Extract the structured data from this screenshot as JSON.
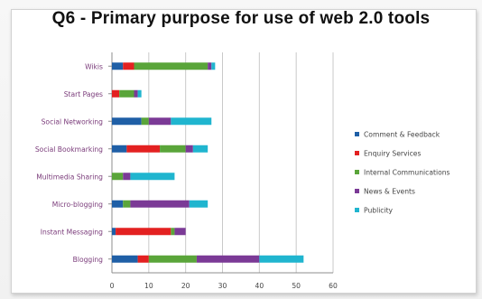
{
  "chart_data": {
    "type": "bar",
    "orientation": "horizontal",
    "stacked": true,
    "title": "Q6 - Primary purpose for use of web 2.0 tools",
    "xlabel": "",
    "ylabel": "",
    "xlim": [
      0,
      60
    ],
    "xticks": [
      0,
      10,
      20,
      30,
      40,
      50,
      60
    ],
    "grid": true,
    "legend_position": "right",
    "categories": [
      "Wikis",
      "Start Pages",
      "Social Networking",
      "Social Bookmarking",
      "Multimedia Sharing",
      "Micro-blogging",
      "Instant Messaging",
      "Blogging"
    ],
    "series": [
      {
        "name": "Comment & Feedback",
        "color": "#1f5fa6",
        "values": [
          3,
          0,
          8,
          4,
          0,
          3,
          1,
          7
        ]
      },
      {
        "name": "Enquiry Services",
        "color": "#e32121",
        "values": [
          3,
          2,
          0,
          9,
          0,
          0,
          15,
          3
        ]
      },
      {
        "name": "Internal Communications",
        "color": "#5aa53a",
        "values": [
          20,
          4,
          2,
          7,
          3,
          2,
          1,
          13
        ]
      },
      {
        "name": "News & Events",
        "color": "#7b3a96",
        "values": [
          1,
          1,
          6,
          2,
          2,
          16,
          3,
          17
        ]
      },
      {
        "name": "Publicity",
        "color": "#20b5cf",
        "values": [
          1,
          1,
          11,
          4,
          12,
          5,
          0,
          12
        ]
      }
    ]
  }
}
